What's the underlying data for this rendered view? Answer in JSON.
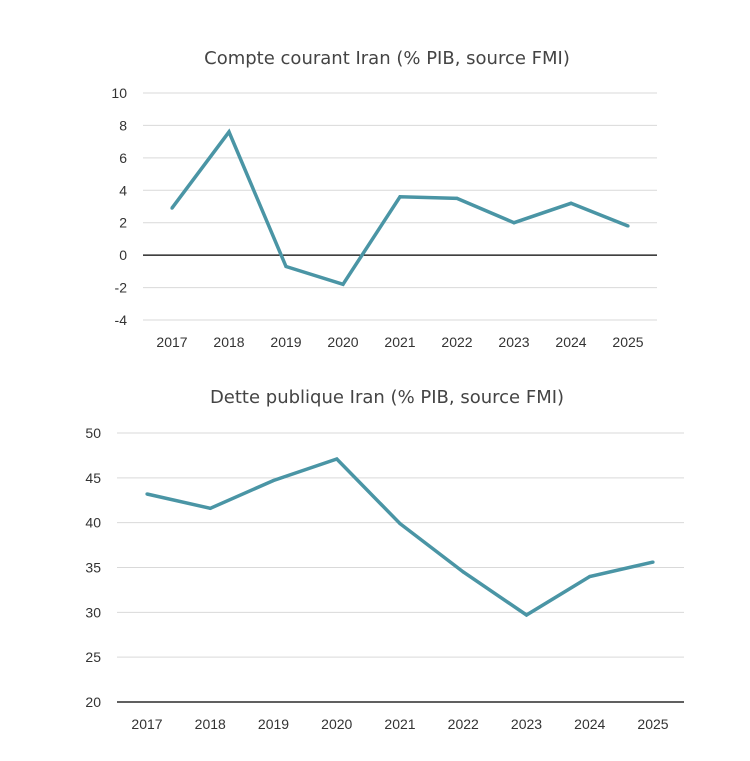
{
  "line_color": "#4a95a5",
  "chart_data": [
    {
      "type": "line",
      "title": "Compte courant Iran (% PIB, source FMI)",
      "categories": [
        "2017",
        "2018",
        "2019",
        "2020",
        "2021",
        "2022",
        "2023",
        "2024",
        "2025"
      ],
      "series": [
        {
          "values": [
            2.9,
            7.6,
            -0.7,
            -1.8,
            3.6,
            3.5,
            2.0,
            3.2,
            1.8
          ]
        }
      ],
      "ylim": [
        -4,
        10
      ],
      "yticks": [
        "10",
        "8",
        "6",
        "4",
        "2",
        "0",
        "-2",
        "-4"
      ],
      "grid": true,
      "legend": "none"
    },
    {
      "type": "line",
      "title": "Dette publique Iran (% PIB, source FMI)",
      "categories": [
        "2017",
        "2018",
        "2019",
        "2020",
        "2021",
        "2022",
        "2023",
        "2024",
        "2025"
      ],
      "series": [
        {
          "values": [
            43.2,
            41.6,
            44.7,
            47.1,
            39.9,
            34.5,
            29.7,
            34.0,
            35.6
          ]
        }
      ],
      "ylim": [
        20,
        50
      ],
      "yticks": [
        "50",
        "45",
        "40",
        "35",
        "30",
        "25",
        "20"
      ],
      "grid": true,
      "legend": "none"
    }
  ]
}
